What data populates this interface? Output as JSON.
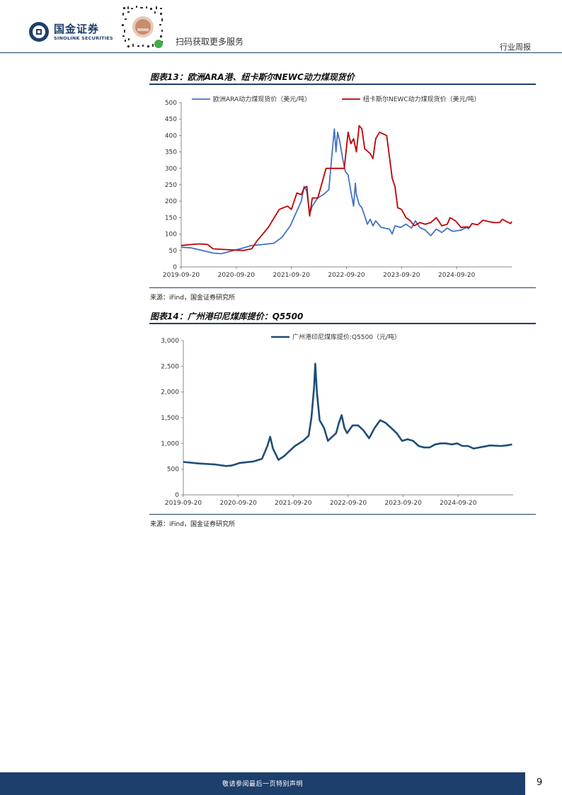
{
  "header": {
    "brand_cn": "国金证券",
    "brand_en": "SINOLINK SECURITIES",
    "scan_text": "扫码获取更多服务",
    "report_type": "行业周报"
  },
  "figures": [
    {
      "title": "图表13：欧洲ARA港、纽卡斯尔NEWC动力煤现货价",
      "source": "来源：iFind，国金证券研究所"
    },
    {
      "title": "图表14：广州港印尼煤库提价：Q5500",
      "source": "来源：iFind，国金证券研究所"
    }
  ],
  "footer": {
    "disclaimer": "敬请参阅最后一页特别声明",
    "page_number": "9"
  },
  "chart_data": [
    {
      "type": "line",
      "ylim": [
        0,
        500
      ],
      "y_ticks": [
        "0",
        "50",
        "100",
        "150",
        "200",
        "250",
        "300",
        "350",
        "400",
        "450",
        "500"
      ],
      "x_ticks": [
        "2019-09-20",
        "2020-09-20",
        "2021-09-20",
        "2022-09-20",
        "2023-09-20",
        "2024-09-20"
      ],
      "legend_position": "top",
      "grid": false,
      "series": [
        {
          "name": "欧洲ARA动力煤现货价（美元/吨）",
          "color": "#4472c4",
          "points": [
            [
              2019.72,
              60
            ],
            [
              2019.9,
              58
            ],
            [
              2020.1,
              50
            ],
            [
              2020.3,
              42
            ],
            [
              2020.45,
              40
            ],
            [
              2020.6,
              47
            ],
            [
              2020.72,
              52
            ],
            [
              2020.85,
              58
            ],
            [
              2021.0,
              65
            ],
            [
              2021.2,
              68
            ],
            [
              2021.4,
              72
            ],
            [
              2021.55,
              90
            ],
            [
              2021.7,
              125
            ],
            [
              2021.82,
              170
            ],
            [
              2021.9,
              200
            ],
            [
              2021.95,
              245
            ],
            [
              2022.0,
              230
            ],
            [
              2022.05,
              160
            ],
            [
              2022.1,
              185
            ],
            [
              2022.2,
              210
            ],
            [
              2022.3,
              220
            ],
            [
              2022.4,
              235
            ],
            [
              2022.45,
              330
            ],
            [
              2022.5,
              420
            ],
            [
              2022.53,
              350
            ],
            [
              2022.56,
              410
            ],
            [
              2022.6,
              380
            ],
            [
              2022.65,
              330
            ],
            [
              2022.7,
              290
            ],
            [
              2022.75,
              280
            ],
            [
              2022.8,
              230
            ],
            [
              2022.85,
              185
            ],
            [
              2022.88,
              255
            ],
            [
              2022.9,
              220
            ],
            [
              2022.95,
              190
            ],
            [
              2023.0,
              180
            ],
            [
              2023.1,
              130
            ],
            [
              2023.15,
              145
            ],
            [
              2023.2,
              125
            ],
            [
              2023.25,
              140
            ],
            [
              2023.35,
              120
            ],
            [
              2023.5,
              115
            ],
            [
              2023.55,
              100
            ],
            [
              2023.6,
              125
            ],
            [
              2023.7,
              120
            ],
            [
              2023.8,
              130
            ],
            [
              2023.9,
              118
            ],
            [
              2023.97,
              140
            ],
            [
              2024.05,
              120
            ],
            [
              2024.15,
              112
            ],
            [
              2024.25,
              95
            ],
            [
              2024.35,
              115
            ],
            [
              2024.45,
              105
            ],
            [
              2024.55,
              118
            ],
            [
              2024.65,
              108
            ],
            [
              2024.8,
              112
            ],
            [
              2024.9,
              120
            ],
            [
              2024.95,
              115
            ]
          ]
        },
        {
          "name": "纽卡斯尔NEWC动力煤现货价（美元/吨）",
          "color": "#c00000",
          "points": [
            [
              2019.72,
              65
            ],
            [
              2019.9,
              68
            ],
            [
              2020.05,
              70
            ],
            [
              2020.2,
              68
            ],
            [
              2020.3,
              55
            ],
            [
              2020.6,
              52
            ],
            [
              2020.85,
              50
            ],
            [
              2021.0,
              55
            ],
            [
              2021.1,
              80
            ],
            [
              2021.3,
              120
            ],
            [
              2021.5,
              175
            ],
            [
              2021.65,
              185
            ],
            [
              2021.72,
              175
            ],
            [
              2021.82,
              225
            ],
            [
              2021.9,
              220
            ],
            [
              2021.95,
              240
            ],
            [
              2022.0,
              245
            ],
            [
              2022.05,
              155
            ],
            [
              2022.1,
              210
            ],
            [
              2022.2,
              210
            ],
            [
              2022.35,
              300
            ],
            [
              2022.5,
              300
            ],
            [
              2022.68,
              300
            ],
            [
              2022.75,
              410
            ],
            [
              2022.8,
              375
            ],
            [
              2022.85,
              390
            ],
            [
              2022.9,
              350
            ],
            [
              2022.95,
              430
            ],
            [
              2023.0,
              420
            ],
            [
              2023.05,
              360
            ],
            [
              2023.15,
              345
            ],
            [
              2023.2,
              330
            ],
            [
              2023.25,
              390
            ],
            [
              2023.32,
              410
            ],
            [
              2023.45,
              400
            ],
            [
              2023.55,
              270
            ],
            [
              2023.6,
              245
            ],
            [
              2023.65,
              180
            ],
            [
              2023.72,
              175
            ],
            [
              2023.8,
              150
            ],
            [
              2023.88,
              140
            ],
            [
              2023.95,
              125
            ],
            [
              2024.05,
              135
            ],
            [
              2024.15,
              130
            ],
            [
              2024.25,
              135
            ],
            [
              2024.35,
              150
            ],
            [
              2024.45,
              125
            ],
            [
              2024.55,
              130
            ],
            [
              2024.6,
              150
            ],
            [
              2024.7,
              140
            ],
            [
              2024.8,
              120
            ],
            [
              2024.9,
              122
            ],
            [
              2024.95,
              120
            ],
            [
              2025.0,
              132
            ],
            [
              2025.1,
              128
            ],
            [
              2025.2,
              142
            ],
            [
              2025.3,
              138
            ],
            [
              2025.4,
              135
            ],
            [
              2025.5,
              135
            ],
            [
              2025.55,
              145
            ],
            [
              2025.6,
              140
            ],
            [
              2025.7,
              132
            ],
            [
              2025.72,
              138
            ]
          ]
        }
      ]
    },
    {
      "type": "line",
      "ylim": [
        0,
        3000
      ],
      "y_ticks": [
        "0",
        "500",
        "1,000",
        "1,500",
        "2,000",
        "2,500",
        "3,000"
      ],
      "x_ticks": [
        "2019-09-20",
        "2020-09-20",
        "2021-09-20",
        "2022-09-20",
        "2023-09-20",
        "2024-09-20"
      ],
      "legend_position": "top",
      "grid": false,
      "series": [
        {
          "name": "广州港印尼煤库提价:Q5500（元/吨）",
          "color": "#1f4e79",
          "points": [
            [
              2019.72,
              640
            ],
            [
              2020.0,
              610
            ],
            [
              2020.3,
              590
            ],
            [
              2020.5,
              560
            ],
            [
              2020.6,
              570
            ],
            [
              2020.75,
              620
            ],
            [
              2021.0,
              650
            ],
            [
              2021.15,
              700
            ],
            [
              2021.25,
              950
            ],
            [
              2021.3,
              1130
            ],
            [
              2021.35,
              900
            ],
            [
              2021.45,
              680
            ],
            [
              2021.55,
              750
            ],
            [
              2021.65,
              850
            ],
            [
              2021.75,
              950
            ],
            [
              2021.9,
              1050
            ],
            [
              2022.0,
              1150
            ],
            [
              2022.05,
              1500
            ],
            [
              2022.1,
              2100
            ],
            [
              2022.12,
              2550
            ],
            [
              2022.15,
              2000
            ],
            [
              2022.2,
              1450
            ],
            [
              2022.28,
              1300
            ],
            [
              2022.35,
              1050
            ],
            [
              2022.45,
              1150
            ],
            [
              2022.5,
              1200
            ],
            [
              2022.55,
              1400
            ],
            [
              2022.6,
              1550
            ],
            [
              2022.65,
              1300
            ],
            [
              2022.7,
              1200
            ],
            [
              2022.8,
              1350
            ],
            [
              2022.9,
              1350
            ],
            [
              2023.0,
              1250
            ],
            [
              2023.1,
              1100
            ],
            [
              2023.2,
              1300
            ],
            [
              2023.3,
              1450
            ],
            [
              2023.4,
              1400
            ],
            [
              2023.5,
              1300
            ],
            [
              2023.6,
              1200
            ],
            [
              2023.7,
              1050
            ],
            [
              2023.8,
              1080
            ],
            [
              2023.9,
              1050
            ],
            [
              2024.0,
              950
            ],
            [
              2024.1,
              920
            ],
            [
              2024.2,
              920
            ],
            [
              2024.3,
              980
            ],
            [
              2024.4,
              1000
            ],
            [
              2024.5,
              1000
            ],
            [
              2024.6,
              980
            ],
            [
              2024.7,
              1000
            ],
            [
              2024.8,
              950
            ],
            [
              2024.9,
              950
            ],
            [
              2025.0,
              900
            ],
            [
              2025.1,
              920
            ],
            [
              2025.2,
              940
            ],
            [
              2025.3,
              960
            ],
            [
              2025.5,
              950
            ],
            [
              2025.6,
              960
            ],
            [
              2025.7,
              980
            ]
          ]
        }
      ]
    }
  ]
}
